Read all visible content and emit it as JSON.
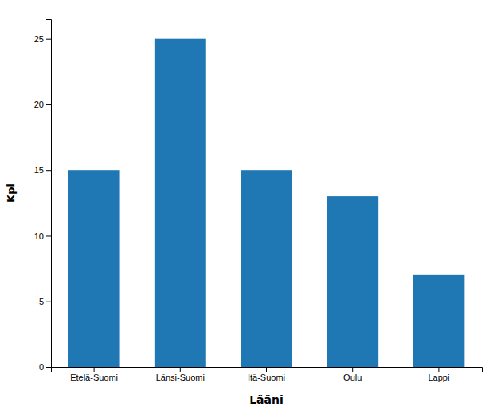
{
  "chart_data": {
    "type": "bar",
    "categories": [
      "Etelä-Suomi",
      "Länsi-Suomi",
      "Itä-Suomi",
      "Oulu",
      "Lappi"
    ],
    "values": [
      15,
      25,
      15,
      13,
      7
    ],
    "xlabel": "Lääni",
    "ylabel": "Kpl",
    "ylim": [
      0,
      26.5
    ],
    "yticks": [
      0,
      5,
      10,
      15,
      20,
      25
    ],
    "grid": false
  }
}
